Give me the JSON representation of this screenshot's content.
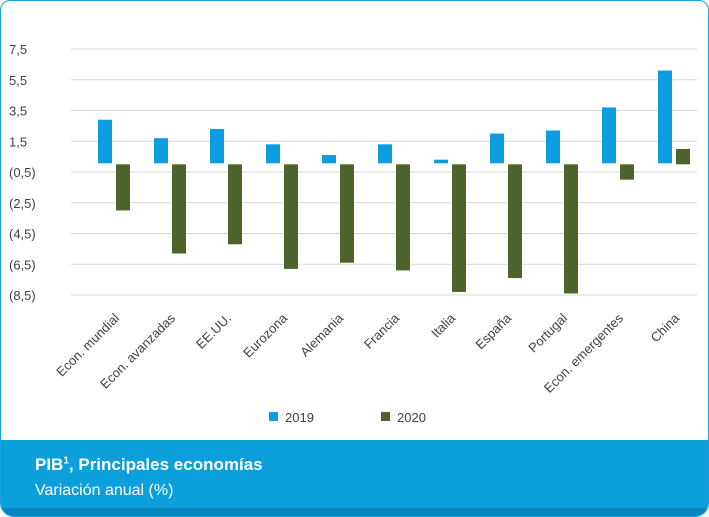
{
  "chart_data": {
    "type": "bar",
    "categories": [
      "Econ. mundial",
      "Econ. avanzadas",
      "EE.UU.",
      "Eurozona",
      "Alemania",
      "Francia",
      "Italia",
      "España",
      "Portugal",
      "Econ. emergentes",
      "China"
    ],
    "series": [
      {
        "name": "2019",
        "values": [
          2.9,
          1.7,
          2.3,
          1.3,
          0.6,
          1.3,
          0.3,
          2.0,
          2.2,
          3.7,
          6.1
        ],
        "color": "#0c9ce0"
      },
      {
        "name": "2020",
        "values": [
          -3.0,
          -5.8,
          -5.2,
          -6.8,
          -6.4,
          -6.9,
          -8.3,
          -7.4,
          -8.4,
          -1.0,
          1.0
        ],
        "color": "#4e632c"
      }
    ],
    "yticks": [
      "7,5",
      "5,5",
      "3,5",
      "1,5",
      "(0,5)",
      "(2,5)",
      "(4,5)",
      "(6,5)",
      "(8,5)"
    ],
    "ytick_values": [
      7.5,
      5.5,
      3.5,
      1.5,
      -0.5,
      -2.5,
      -4.5,
      -6.5,
      -8.5
    ],
    "ylim": [
      -8.5,
      7.5
    ],
    "grid": true,
    "legend_position": "bottom"
  },
  "footer": {
    "title": "PIB",
    "title_sup": "1",
    "title_rest": ", Principales economías",
    "subtitle": "Variación anual (%)"
  }
}
